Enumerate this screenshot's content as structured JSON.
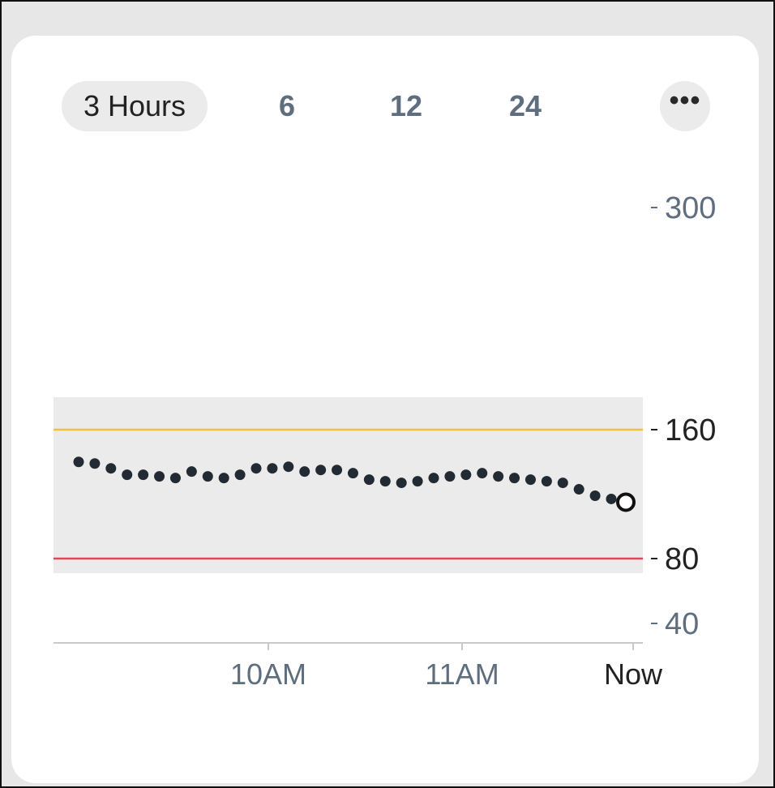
{
  "tabs": [
    {
      "label": "3 Hours",
      "active": true
    },
    {
      "label": "6",
      "active": false
    },
    {
      "label": "12",
      "active": false
    },
    {
      "label": "24",
      "active": false
    }
  ],
  "more_label": "•••",
  "icons": {
    "more": "more-dots-icon"
  },
  "colors": {
    "high_line": "#f0c23a",
    "low_line": "#e0475b",
    "target_band": "#ebebeb",
    "point": "#222b33",
    "axis": "#c9c9c9",
    "muted_text": "#5f6e7e"
  },
  "chart_data": {
    "type": "scatter",
    "y_ticks": [
      {
        "value": 300,
        "label": "300",
        "emphasis": false
      },
      {
        "value": 160,
        "label": "160",
        "emphasis": true
      },
      {
        "value": 80,
        "label": "80",
        "emphasis": true
      },
      {
        "value": 40,
        "label": "40",
        "emphasis": false
      }
    ],
    "x_ticks": [
      {
        "label": "10AM",
        "emphasis": false
      },
      {
        "label": "11AM",
        "emphasis": false
      },
      {
        "label": "Now",
        "emphasis": true
      }
    ],
    "target_range": [
      70,
      180
    ],
    "high_threshold": 160,
    "low_threshold": 80,
    "points": [
      140,
      139,
      136,
      132,
      132,
      131,
      130,
      134,
      131,
      130,
      132,
      136,
      136,
      137,
      134,
      135,
      135,
      133,
      129,
      128,
      127,
      128,
      130,
      131,
      132,
      133,
      131,
      130,
      129,
      128,
      127,
      123,
      119,
      117
    ],
    "current_value": 115
  }
}
